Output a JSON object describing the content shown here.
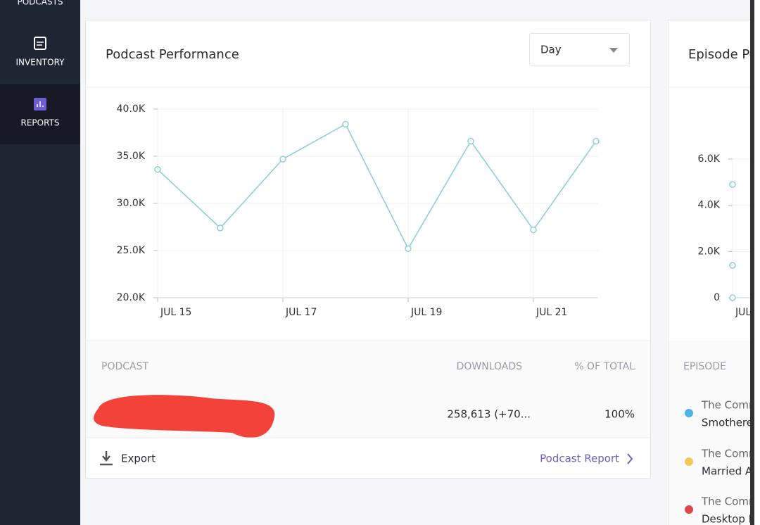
{
  "sidebar": {
    "items": [
      "PODCASTS",
      "INVENTORY",
      "REPORTS"
    ]
  },
  "card": {
    "title": "Podcast Performance",
    "dropdown": "Day",
    "table": {
      "headers": [
        "PODCAST",
        "DOWNLOADS",
        "% OF TOTAL"
      ],
      "rows": [
        [
          "258,613 (+70...",
          "100%"
        ]
      ]
    },
    "footer": {
      "export": "Export",
      "link": "Podcast Report"
    }
  },
  "card2": {
    "title": "Episode Pe",
    "table": {
      "header": "EPISODE",
      "rows": [
        [
          "The Comn",
          "Smothere"
        ],
        [
          "The Comn",
          "Married A"
        ],
        [
          "The Comn",
          "Desktop N"
        ]
      ]
    }
  },
  "chart_data": [
    {
      "type": "line",
      "categories": [
        "JUL 15",
        null,
        "JUL 17",
        null,
        "JUL 19",
        null,
        "JUL 21",
        null
      ],
      "series": [
        {
          "color": "#8ed0d4",
          "values": [
            33600,
            27400,
            34700,
            38400,
            25200,
            36600,
            27200,
            36600
          ]
        }
      ],
      "ylim": [
        20000,
        40000
      ],
      "yticks": [
        {
          "value": 20000,
          "label": "20.0K"
        },
        {
          "value": 25000,
          "label": "25.0K"
        },
        {
          "value": 30000,
          "label": "30.0K"
        },
        {
          "value": 35000,
          "label": "35.0K"
        },
        {
          "value": 40000,
          "label": "40.0K"
        }
      ],
      "grid": true
    },
    {
      "type": "line",
      "categories": [
        "JUL"
      ],
      "series": [
        {
          "color": "#8ed0d4",
          "values": [
            4900
          ]
        },
        {
          "color": "#8ed0d4",
          "values": [
            1400
          ]
        },
        {
          "color": "#8ed0d4",
          "values": [
            0
          ]
        }
      ],
      "ylim": [
        0,
        6000
      ],
      "yticks": [
        0,
        {
          "value": 2000,
          "label": "2.0K"
        },
        {
          "value": 4000,
          "label": "4.0K"
        },
        {
          "value": 6000,
          "label": "6.0K"
        }
      ],
      "grid": true
    }
  ]
}
